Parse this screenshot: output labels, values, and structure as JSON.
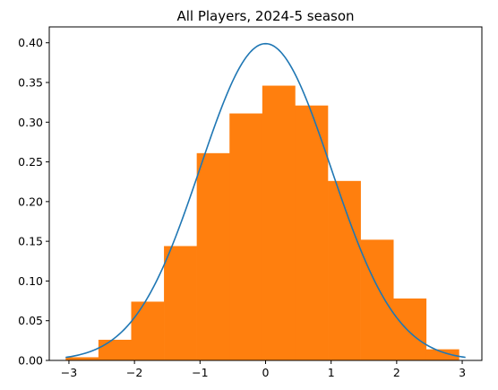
{
  "chart_data": {
    "type": "bar",
    "title": "All Players, 2024-5 season",
    "xlabel": "",
    "ylabel": "",
    "xlim": [
      -3.3,
      3.3
    ],
    "ylim": [
      0,
      0.42
    ],
    "x_ticks": [
      -3,
      -2,
      -1,
      0,
      1,
      2,
      3
    ],
    "y_ticks": [
      0.0,
      0.05,
      0.1,
      0.15,
      0.2,
      0.25,
      0.3,
      0.35,
      0.4
    ],
    "x_tick_labels": [
      "−3",
      "−2",
      "−1",
      "0",
      "1",
      "2",
      "3"
    ],
    "y_tick_labels": [
      "0.00",
      "0.05",
      "0.10",
      "0.15",
      "0.20",
      "0.25",
      "0.30",
      "0.35",
      "0.40"
    ],
    "grid": false,
    "legend": "none",
    "histogram": {
      "color": "#ff7f0e",
      "bin_edges": [
        -3.05,
        -2.55,
        -2.05,
        -1.55,
        -1.05,
        -0.55,
        -0.05,
        0.45,
        0.95,
        1.45,
        1.95,
        2.45,
        2.95
      ],
      "density": [
        0.004,
        0.026,
        0.074,
        0.144,
        0.261,
        0.311,
        0.346,
        0.321,
        0.226,
        0.152,
        0.078,
        0.014
      ]
    },
    "curve": {
      "color": "#1f77b4",
      "kind": "normal_pdf",
      "mean": 0,
      "std": 1,
      "x_range": [
        -3.05,
        3.05
      ]
    }
  }
}
